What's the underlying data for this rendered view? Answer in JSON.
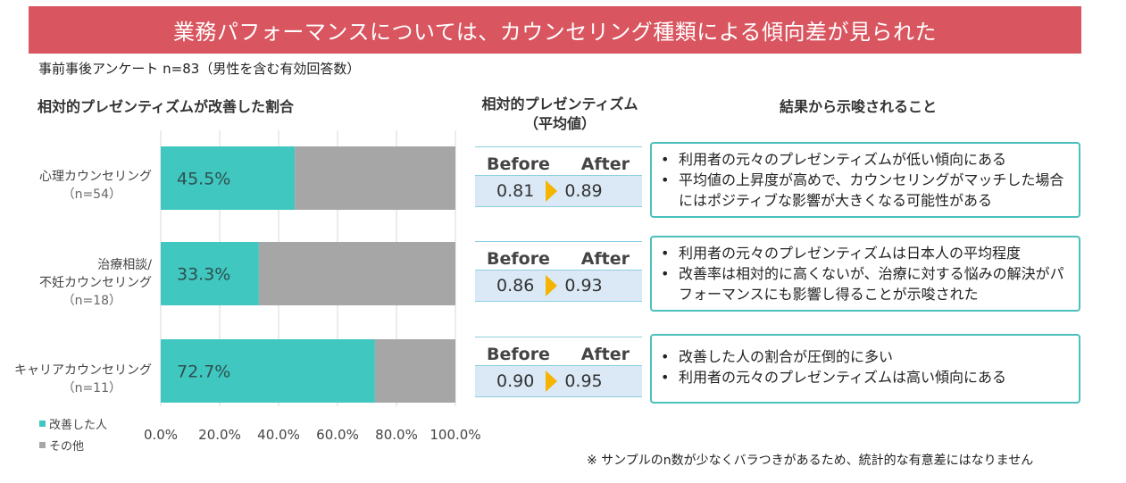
{
  "title": "業務パフォーマンスについては、カウンセリング種類による傾向差が見られた",
  "survey_note": "事前事後アンケート n=83（男性を含む有効回答数）",
  "headings": {
    "left": "相対的プレゼンティズムが改善した割合",
    "mid_line1": "相対的プレゼンティズム",
    "mid_line2": "（平均値）",
    "right": "結果から示唆されること"
  },
  "chart_data": {
    "type": "bar",
    "orientation": "horizontal",
    "stacked": true,
    "categories": [
      {
        "line1": "心理カウンセリング",
        "line2": "",
        "n": "（n=54）"
      },
      {
        "line1": "治療相談/",
        "line2": "不妊カウンセリング",
        "n": "（n=18）"
      },
      {
        "line1": "キャリアカウンセリング",
        "line2": "",
        "n": "（n=11）"
      }
    ],
    "series": [
      {
        "name": "改善した人",
        "values": [
          45.5,
          33.3,
          72.7
        ],
        "labels": [
          "45.5%",
          "33.3%",
          "72.7%"
        ]
      },
      {
        "name": "その他",
        "values": [
          54.5,
          66.7,
          27.3
        ]
      }
    ],
    "xlim": [
      0,
      100
    ],
    "ticks": [
      "0.0%",
      "20.0%",
      "40.0%",
      "60.0%",
      "80.0%",
      "100.0%"
    ],
    "grid": true,
    "legend_position": "bottom-left"
  },
  "colors": {
    "improved": "#3fc7c0",
    "other": "#a6a6a6",
    "banner": "#d9555f",
    "arrow": "#f4b400",
    "box_border": "#4cc0bd"
  },
  "before_after": [
    {
      "before_label": "Before",
      "after_label": "After",
      "before": "0.81",
      "after": "0.89"
    },
    {
      "before_label": "Before",
      "after_label": "After",
      "before": "0.86",
      "after": "0.93"
    },
    {
      "before_label": "Before",
      "after_label": "After",
      "before": "0.90",
      "after": "0.95"
    }
  ],
  "bullet_symbol": "•",
  "findings": [
    [
      "利用者の元々のプレゼンティズムが低い傾向にある",
      "平均値の上昇度が高めで、カウンセリングがマッチした場合にはポジティブな影響が大きくなる可能性がある"
    ],
    [
      "利用者の元々のプレゼンティズムは日本人の平均程度",
      "改善率は相対的に高くないが、治療に対する悩みの解決がパフォーマンスにも影響し得ることが示唆された"
    ],
    [
      "改善した人の割合が圧倒的に多い",
      "利用者の元々のプレゼンティズムは高い傾向にある"
    ]
  ],
  "footnote": "※ サンプルのn数が少なくバラつきがあるため、統計的な有意差にはなりません"
}
